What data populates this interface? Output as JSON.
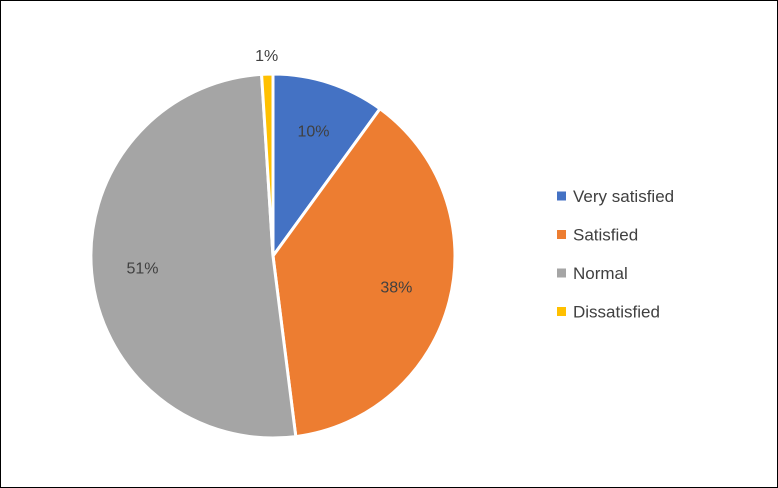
{
  "chart_data": {
    "type": "pie",
    "categories": [
      "Very satisfied",
      "Satisfied",
      "Normal",
      "Dissatisfied"
    ],
    "values": [
      10,
      38,
      51,
      1
    ],
    "data_labels": [
      "10%",
      "38%",
      "51%",
      "1%"
    ],
    "colors": [
      "#4472C4",
      "#ED7D31",
      "#A5A5A5",
      "#FFC000"
    ],
    "legend": {
      "placement": "right",
      "entries": [
        "Very satisfied",
        "Satisfied",
        "Normal",
        "Dissatisfied"
      ]
    },
    "start_angle": "12 o'clock",
    "direction": "clockwise"
  }
}
